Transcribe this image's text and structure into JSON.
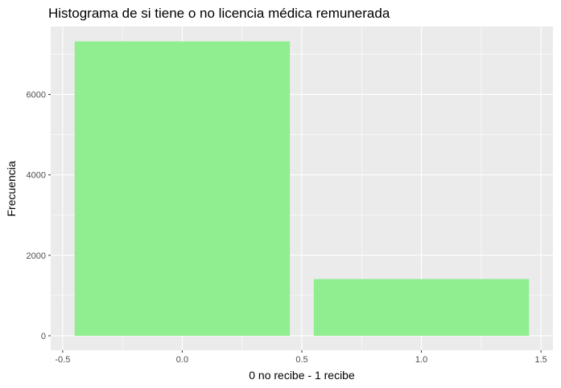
{
  "chart_data": {
    "type": "bar",
    "title": "Histograma de si tiene o no licencia médica remunerada",
    "xlabel": "0 no recibe - 1 recibe",
    "ylabel": "Frecuencia",
    "bars": [
      {
        "x": 0,
        "width": 0.9,
        "value": 7320
      },
      {
        "x": 1,
        "width": 0.9,
        "value": 1410
      }
    ],
    "xlim": [
      -0.55,
      1.55
    ],
    "ylim": [
      -360,
      7690
    ],
    "x_ticks": [
      -0.5,
      0.0,
      0.5,
      1.0,
      1.5
    ],
    "x_tick_labels": [
      "-0.5",
      "0.0",
      "0.5",
      "1.0",
      "1.5"
    ],
    "y_ticks": [
      0,
      2000,
      4000,
      6000
    ],
    "y_tick_labels": [
      "0",
      "2000",
      "4000",
      "6000"
    ],
    "grid": true,
    "bar_color": "#90EE90",
    "panel_background": "#EBEBEB",
    "grid_color": "#FFFFFF"
  }
}
